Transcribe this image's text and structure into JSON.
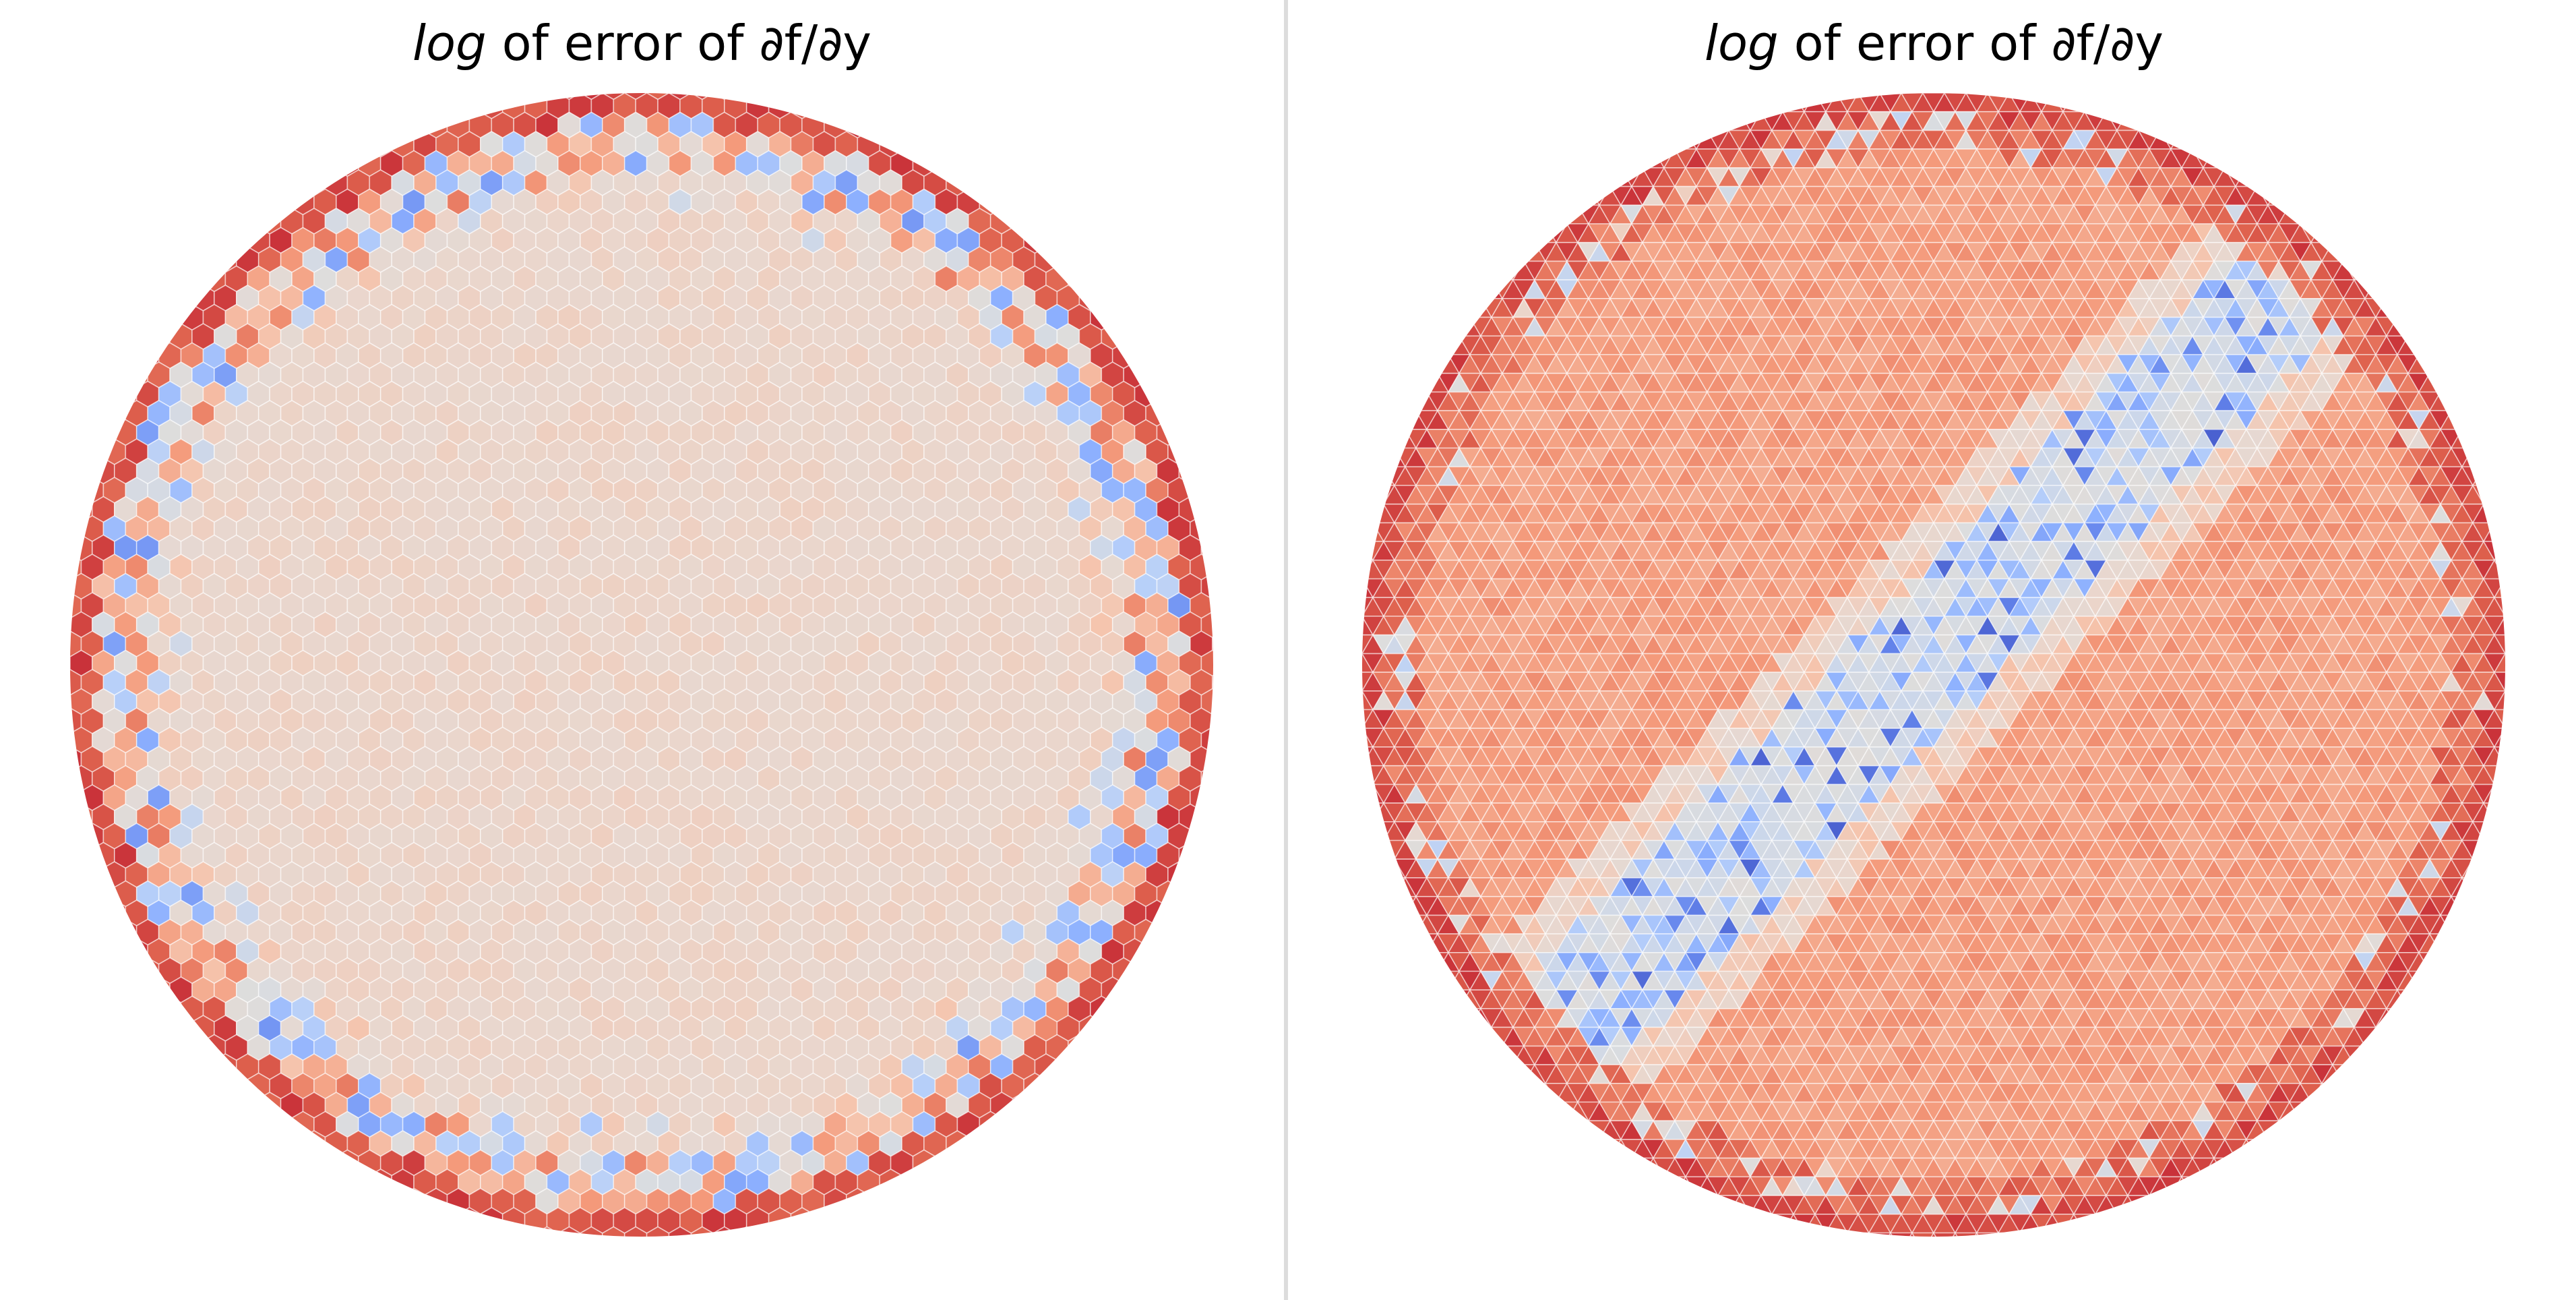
{
  "chart_data": [
    {
      "type": "heatmap",
      "mesh": "hexagonal",
      "title": "log of error of ∂f/∂y",
      "title_parts": {
        "log_word": "log",
        "rest": " of error of ",
        "expr": "∂f/∂y"
      },
      "colormap": "coolwarm",
      "domain": "unit disk",
      "pattern": "uniform light-peach interior with mixed blue/orange ring near boundary and dark-red outer rim",
      "interior_level": 0.58,
      "rim_level": 0.92,
      "grid": false,
      "legend": "none"
    },
    {
      "type": "heatmap",
      "mesh": "triangular",
      "title": "log of error of ∂f/∂y",
      "title_parts": {
        "log_word": "log",
        "rest": " of error of ",
        "expr": "∂f/∂y"
      },
      "colormap": "coolwarm",
      "domain": "unit disk",
      "pattern": "orange interior with a diagonal blue band from lower-left to upper-right and dark-red outer rim",
      "interior_level": 0.75,
      "band_level": 0.25,
      "rim_level": 0.92,
      "grid": false,
      "legend": "none"
    }
  ],
  "colors": {
    "background": "#ffffff",
    "divider": "#dcdcdc",
    "rim_red": "#cc3d38",
    "deep_blue": "#4257d8",
    "peach": "#ead6cc"
  }
}
